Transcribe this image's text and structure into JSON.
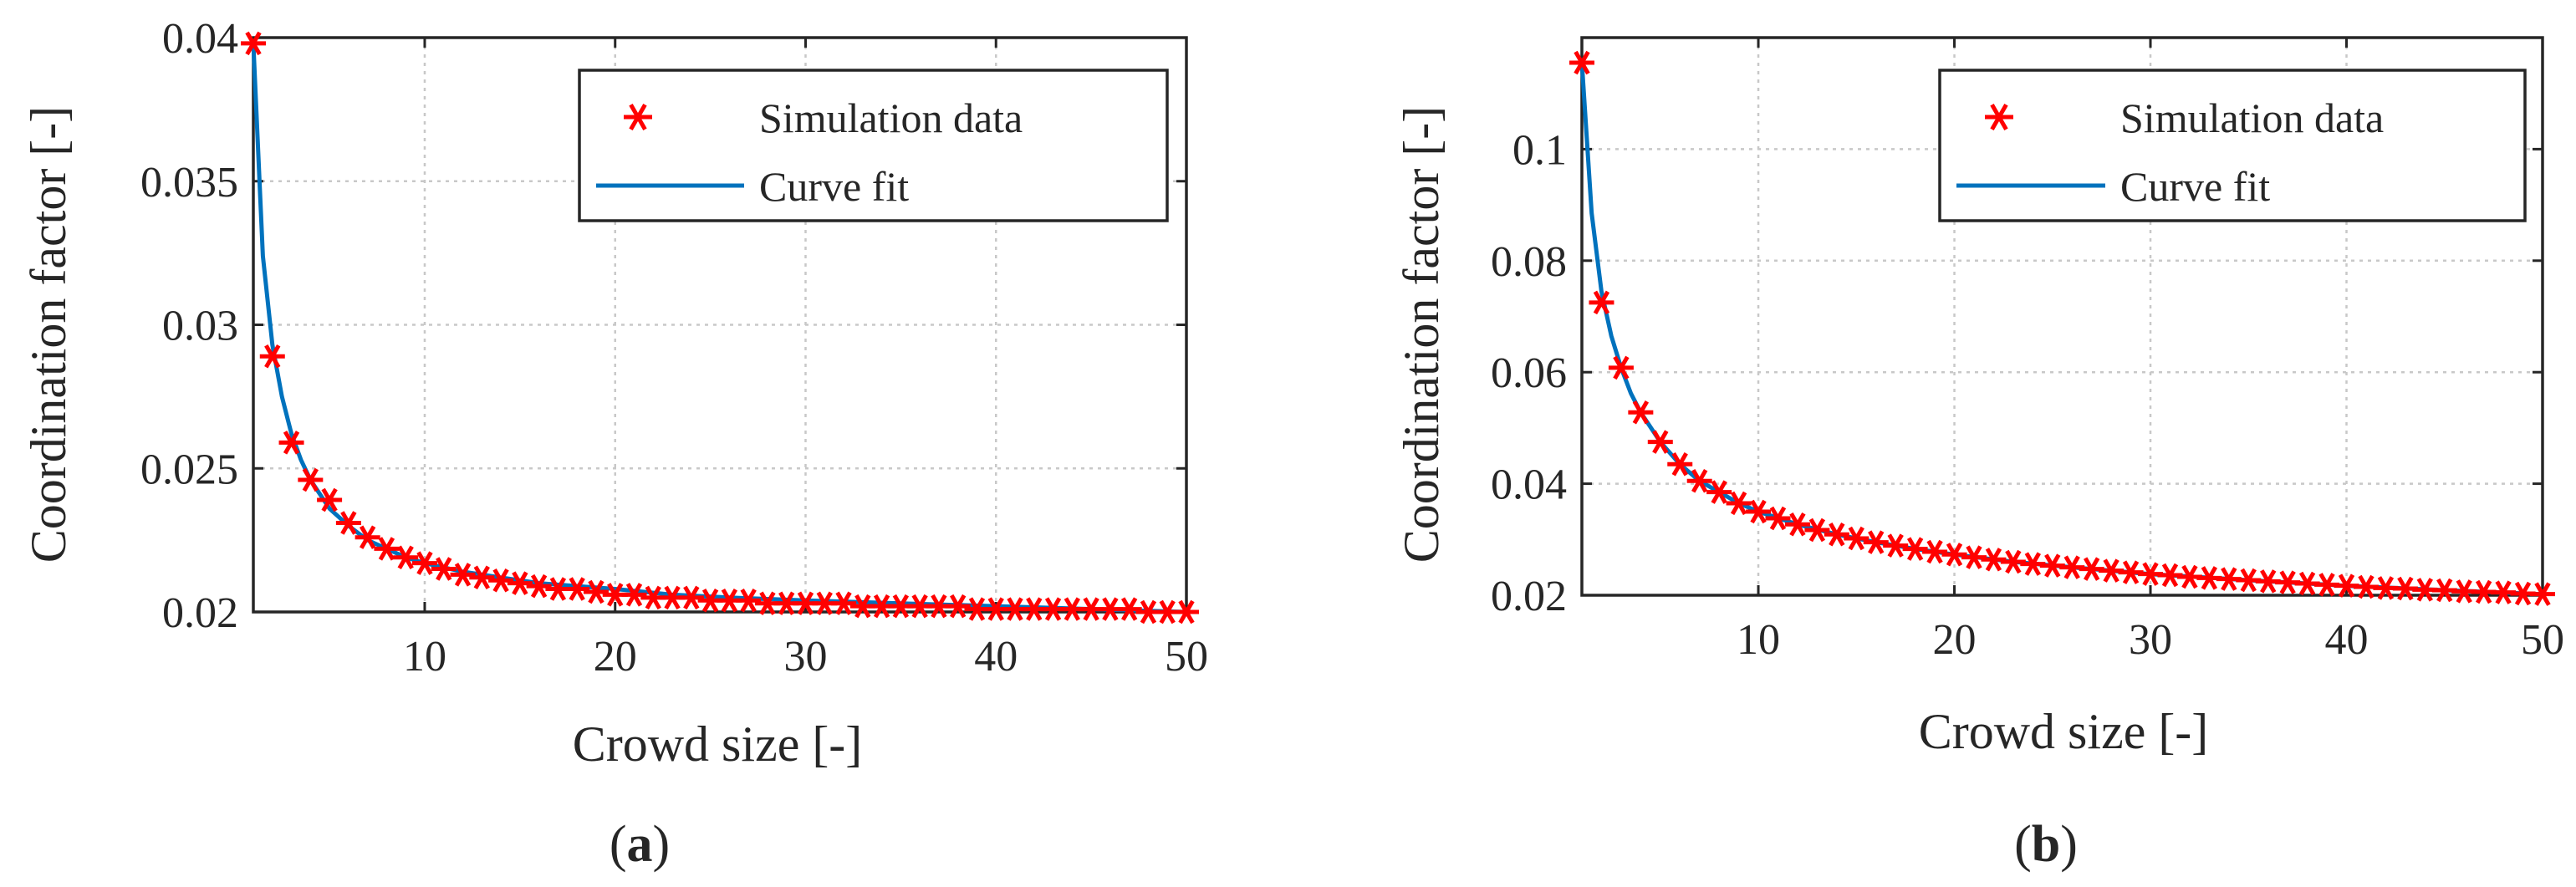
{
  "chart_data": [
    {
      "id": "a",
      "type": "line",
      "caption_letter": "a",
      "xlabel": "Crowd size [-]",
      "ylabel": "Coordination factor [-]",
      "xlim": [
        1,
        50
      ],
      "ylim": [
        0.02,
        0.04
      ],
      "xticks": [
        10,
        20,
        30,
        40,
        50
      ],
      "yticks": [
        0.02,
        0.025,
        0.03,
        0.035,
        0.04
      ],
      "ytick_labels": [
        "0.02",
        "0.025",
        "0.03",
        "0.035",
        "0.04"
      ],
      "grid": true,
      "legend_position": "top-right",
      "series": [
        {
          "name": "Simulation data",
          "kind": "markers",
          "color": "#ff0000",
          "x": [
            1,
            2,
            3,
            4,
            5,
            6,
            7,
            8,
            9,
            10,
            11,
            12,
            13,
            14,
            15,
            16,
            17,
            18,
            19,
            20,
            21,
            22,
            23,
            24,
            25,
            26,
            27,
            28,
            29,
            30,
            31,
            32,
            33,
            34,
            35,
            36,
            37,
            38,
            39,
            40,
            41,
            42,
            43,
            44,
            45,
            46,
            47,
            48,
            49,
            50
          ],
          "y": [
            0.0398,
            0.0289,
            0.0259,
            0.0246,
            0.0239,
            0.0231,
            0.0226,
            0.0222,
            0.0219,
            0.0217,
            0.0215,
            0.0213,
            0.0212,
            0.0211,
            0.021,
            0.0209,
            0.0208,
            0.0208,
            0.0207,
            0.0206,
            0.0206,
            0.0205,
            0.0205,
            0.0205,
            0.0204,
            0.0204,
            0.0204,
            0.0203,
            0.0203,
            0.0203,
            0.0203,
            0.0203,
            0.0202,
            0.0202,
            0.0202,
            0.0202,
            0.0202,
            0.0202,
            0.0201,
            0.0201,
            0.0201,
            0.0201,
            0.0201,
            0.0201,
            0.0201,
            0.0201,
            0.0201,
            0.02,
            0.02,
            0.02
          ]
        },
        {
          "name": "Curve fit",
          "kind": "line",
          "color": "#0072bd",
          "x": [
            1,
            1.5,
            2,
            2.5,
            3,
            3.5,
            4,
            5,
            6,
            7,
            8,
            9,
            10,
            12,
            14,
            16,
            18,
            20,
            23,
            26,
            30,
            35,
            40,
            45,
            50
          ],
          "y": [
            0.0398,
            0.0324,
            0.0293,
            0.0275,
            0.0262,
            0.0253,
            0.0246,
            0.0236,
            0.023,
            0.0225,
            0.0222,
            0.0219,
            0.0217,
            0.0214,
            0.0212,
            0.021,
            0.0209,
            0.0208,
            0.0206,
            0.0205,
            0.0204,
            0.0203,
            0.0202,
            0.0201,
            0.02
          ]
        }
      ]
    },
    {
      "id": "b",
      "type": "line",
      "caption_letter": "b",
      "xlabel": "Crowd size [-]",
      "ylabel": "Coordination factor [-]",
      "xlim": [
        1,
        50
      ],
      "ylim": [
        0.02,
        0.12
      ],
      "xticks": [
        10,
        20,
        30,
        40,
        50
      ],
      "yticks": [
        0.02,
        0.04,
        0.06,
        0.08,
        0.1
      ],
      "ytick_labels": [
        "0.02",
        "0.04",
        "0.06",
        "0.08",
        "0.1"
      ],
      "grid": true,
      "legend_position": "top-right",
      "series": [
        {
          "name": "Simulation data",
          "kind": "markers",
          "color": "#ff0000",
          "x": [
            1,
            2,
            3,
            4,
            5,
            6,
            7,
            8,
            9,
            10,
            11,
            12,
            13,
            14,
            15,
            16,
            17,
            18,
            19,
            20,
            21,
            22,
            23,
            24,
            25,
            26,
            27,
            28,
            29,
            30,
            31,
            32,
            33,
            34,
            35,
            36,
            37,
            38,
            39,
            40,
            41,
            42,
            43,
            44,
            45,
            46,
            47,
            48,
            49,
            50
          ],
          "y": [
            0.1155,
            0.0725,
            0.0608,
            0.0528,
            0.0475,
            0.0435,
            0.0405,
            0.0385,
            0.0365,
            0.035,
            0.0338,
            0.0327,
            0.0317,
            0.0309,
            0.0302,
            0.0295,
            0.0289,
            0.0283,
            0.0278,
            0.0273,
            0.0268,
            0.0264,
            0.026,
            0.0256,
            0.0253,
            0.025,
            0.0247,
            0.0244,
            0.0241,
            0.0238,
            0.0236,
            0.0233,
            0.0231,
            0.0229,
            0.0227,
            0.0225,
            0.0223,
            0.0221,
            0.0219,
            0.0217,
            0.0215,
            0.0213,
            0.0212,
            0.021,
            0.0209,
            0.0207,
            0.0206,
            0.0205,
            0.0203,
            0.0202
          ]
        },
        {
          "name": "Curve fit",
          "kind": "line",
          "color": "#0072bd",
          "x": [
            1,
            1.5,
            2,
            2.5,
            3,
            3.5,
            4,
            5,
            6,
            7,
            8,
            9,
            10,
            12,
            14,
            16,
            18,
            20,
            23,
            26,
            30,
            35,
            40,
            45,
            50
          ],
          "y": [
            0.1155,
            0.0885,
            0.0745,
            0.0665,
            0.0608,
            0.0562,
            0.0528,
            0.0475,
            0.0435,
            0.0405,
            0.0385,
            0.0365,
            0.035,
            0.0327,
            0.0309,
            0.0295,
            0.0283,
            0.0273,
            0.026,
            0.025,
            0.0238,
            0.0227,
            0.0217,
            0.0209,
            0.0202
          ]
        }
      ]
    }
  ]
}
